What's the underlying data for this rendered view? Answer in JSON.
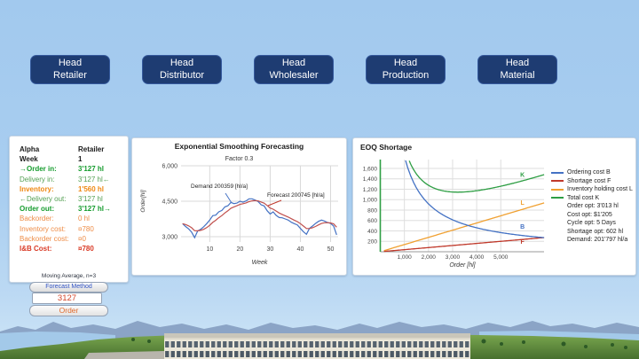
{
  "colors": {
    "sky": "#a2c9ee",
    "button_navy": "#1e3c72",
    "demand_blue": "#4472c4",
    "forecast_red": "#c0504d",
    "eoq_blue": "#4472c4",
    "eoq_red": "#c0392b",
    "eoq_orange": "#f0a030",
    "eoq_green": "#2e9e44"
  },
  "header": {
    "buttons": [
      {
        "line1": "Head",
        "line2": "Retailer"
      },
      {
        "line1": "Head",
        "line2": "Distributor"
      },
      {
        "line1": "Head",
        "line2": "Wholesaler"
      },
      {
        "line1": "Head",
        "line2": "Production"
      },
      {
        "line1": "Head",
        "line2": "Material"
      }
    ]
  },
  "stats_panel": {
    "rows": [
      {
        "label": "Alpha",
        "value": "Retailer",
        "color": "#1a1a1a",
        "bold": true
      },
      {
        "label": "Week",
        "value": "1",
        "color": "#1a1a1a",
        "bold": true
      },
      {
        "label": "→Order in:",
        "value": "3'127 hl",
        "color": "#169c2e",
        "bold": true
      },
      {
        "label": "Delivery in:",
        "value": "3'127 hl←",
        "color": "#55a054",
        "bold": false
      },
      {
        "label": "Inventory:",
        "value": "1'560 hl",
        "color": "#ef8914",
        "bold": true
      },
      {
        "label": "←Delivery out:",
        "value": "3'127 hl",
        "color": "#55a054",
        "bold": false
      },
      {
        "label": "Order out:",
        "value": "3'127 hl→",
        "color": "#169c2e",
        "bold": true
      },
      {
        "label": "Backorder:",
        "value": "0 hl",
        "color": "#ee8c46",
        "bold": false
      },
      {
        "label": "Inventory cost:",
        "value": "¤780",
        "color": "#ee8c46",
        "bold": false
      },
      {
        "label": "Backorder cost:",
        "value": "¤0",
        "color": "#ee8c46",
        "bold": false
      },
      {
        "label": "I&B Cost:",
        "value": "¤780",
        "color": "#d93a26",
        "bold": true
      }
    ],
    "note": "Moving Average, n=3"
  },
  "controls": {
    "forecast_method_label": "Forecast Method",
    "order_input_value": "3127",
    "order_button_label": "Order"
  },
  "chart_data": [
    {
      "type": "line",
      "title": "Exponential Smoothing Forecasting",
      "subtitle": "Factor 0.3",
      "xlabel": "Week",
      "ylabel": "Order[hl]",
      "xlim": [
        1,
        52
      ],
      "ylim": [
        2850,
        6150
      ],
      "grid": true,
      "x_ticks": [
        {
          "v": 10,
          "label": "10"
        },
        {
          "v": 20,
          "label": "20"
        },
        {
          "v": 30,
          "label": "30"
        },
        {
          "v": 40,
          "label": "40"
        },
        {
          "v": 50,
          "label": "50"
        }
      ],
      "y_ticks": [
        {
          "v": 3000,
          "label": "3,000"
        },
        {
          "v": 4500,
          "label": "4,500"
        },
        {
          "v": 6000,
          "label": "6,000"
        }
      ],
      "series": [
        {
          "name": "Demand",
          "color": "#4472c4",
          "values": [
            3550,
            3430,
            3330,
            3190,
            2960,
            3240,
            3310,
            3420,
            3550,
            3700,
            3890,
            3910,
            4050,
            4110,
            4260,
            4310,
            4450,
            4400,
            4420,
            4500,
            4460,
            4510,
            4600,
            4600,
            4550,
            4490,
            4350,
            4300,
            4100,
            3960,
            4050,
            3900,
            3810,
            3800,
            3750,
            3700,
            3610,
            3550,
            3500,
            3350,
            3210,
            3100,
            3350,
            3450,
            3560,
            3650,
            3700,
            3660,
            3600,
            3560,
            3450,
            3080
          ]
        },
        {
          "name": "Forecast",
          "color": "#c0504d",
          "values": [
            3550,
            3514,
            3459,
            3378,
            3253,
            3249,
            3267,
            3313,
            3384,
            3479,
            3602,
            3694,
            3801,
            3894,
            4004,
            4096,
            4202,
            4261,
            4309,
            4366,
            4394,
            4429,
            4480,
            4516,
            4526,
            4515,
            4466,
            4416,
            4321,
            4213,
            4164,
            4085,
            4003,
            3942,
            3884,
            3829,
            3763,
            3699,
            3639,
            3552,
            3449,
            3344,
            3346,
            3377,
            3432,
            3497,
            3558,
            3589,
            3592,
            3582,
            3542,
            3403
          ]
        }
      ],
      "annotations": [
        {
          "text": "Demand 200359 [hl/a]",
          "color": "#4472c4",
          "box": {
            "left": 66,
            "top": 51
          },
          "line": [
            105,
            62,
            112,
            73
          ]
        },
        {
          "text": "Forecast 200745 [hl/a]",
          "color": "#c0392b",
          "box": {
            "left": 152,
            "top": 61
          },
          "line": [
            168,
            70,
            153,
            76
          ]
        }
      ]
    },
    {
      "type": "line",
      "title": "EOQ Shortage",
      "xlabel": "Order [hl]",
      "xlim": [
        0,
        6800
      ],
      "ylim": [
        0,
        1770
      ],
      "grid": true,
      "x_ticks": [
        {
          "v": 1000,
          "label": "1,000"
        },
        {
          "v": 2000,
          "label": "2,000"
        },
        {
          "v": 3000,
          "label": "3,000"
        },
        {
          "v": 4000,
          "label": "4,000"
        },
        {
          "v": 5000,
          "label": "5,000"
        }
      ],
      "y_ticks": [
        {
          "v": 200,
          "label": "200"
        },
        {
          "v": 400,
          "label": "400"
        },
        {
          "v": 600,
          "label": "600"
        },
        {
          "v": 800,
          "label": "800"
        },
        {
          "v": 1000,
          "label": "1,000"
        },
        {
          "v": 1200,
          "label": "1,200"
        },
        {
          "v": 1400,
          "label": "1,400"
        },
        {
          "v": 1600,
          "label": "1,600"
        }
      ],
      "curves": {
        "B_coeff": 1840000,
        "F_slope": 0.04,
        "L_slope": 0.138
      },
      "series": [
        {
          "name": "Ordering cost B",
          "letter": "B",
          "color": "#4472c4",
          "letter_at": [
            5900,
            440
          ]
        },
        {
          "name": "Shortage cost F",
          "letter": "F",
          "color": "#c0392b",
          "letter_at": [
            5900,
            150
          ]
        },
        {
          "name": "Inventory holding cost L",
          "letter": "L",
          "color": "#f0a030",
          "letter_at": [
            5900,
            900
          ]
        },
        {
          "name": "Total cost K",
          "letter": "K",
          "color": "#2e9e44",
          "letter_at": [
            5900,
            1440
          ]
        }
      ],
      "legend_stats": [
        "Order opt: 3'013 hl",
        "Cost opt: $1'205",
        "Cycle opt: 5 Days",
        "Shortage opt: 602 hl",
        "Demand: 201'797 hl/a"
      ]
    }
  ]
}
